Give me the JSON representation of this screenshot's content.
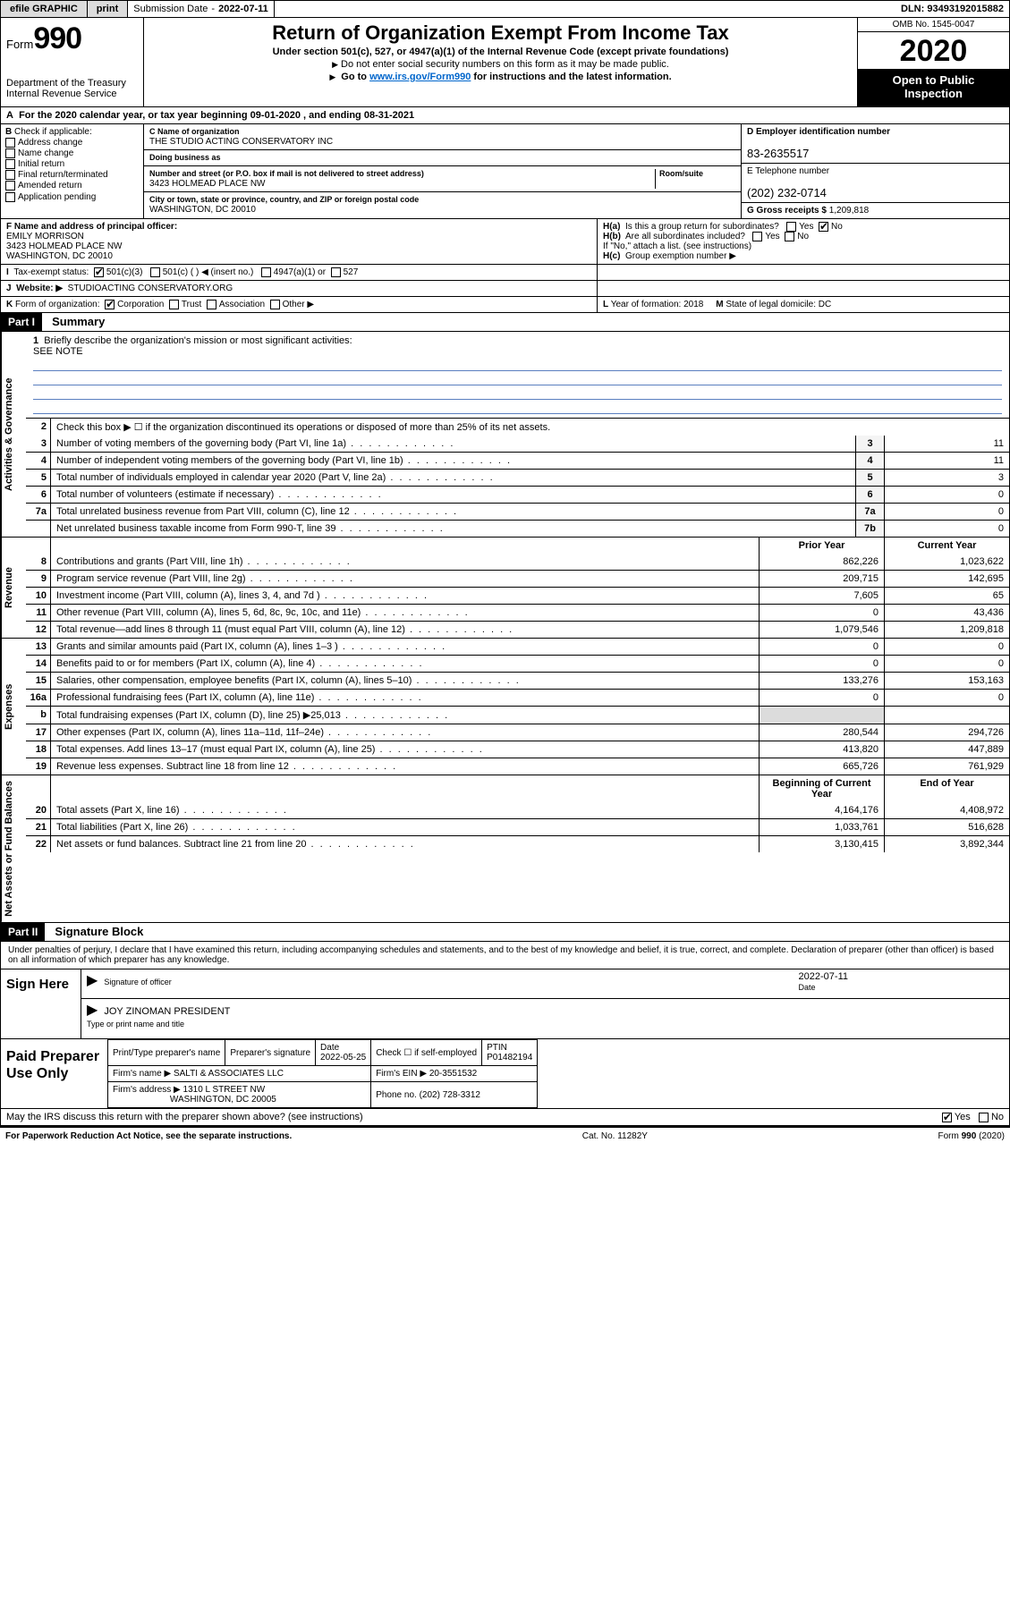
{
  "meta": {
    "omb": "OMB No. 1545-0047",
    "dln_label": "DLN:",
    "dln": "93493192015882",
    "year": "2020",
    "open1": "Open to Public",
    "open2": "Inspection"
  },
  "topbar": {
    "efile": "efile GRAPHIC",
    "print": "print",
    "subdate_label": "Submission Date",
    "subdate": "2022-07-11"
  },
  "header": {
    "form_word": "Form",
    "form_no": "990",
    "dept1": "Department of the Treasury",
    "dept2": "Internal Revenue Service",
    "title": "Return of Organization Exempt From Income Tax",
    "sub1": "Under section 501(c), 527, or 4947(a)(1) of the Internal Revenue Code (except private foundations)",
    "sub2": "Do not enter social security numbers on this form as it may be made public.",
    "sub3_pre": "Go to ",
    "sub3_link": "www.irs.gov/Form990",
    "sub3_post": " for instructions and the latest information."
  },
  "calrow": "For the 2020 calendar year, or tax year beginning 09-01-2020   , and ending 08-31-2021",
  "B": {
    "label": "Check if applicable:",
    "opts": [
      "Address change",
      "Name change",
      "Initial return",
      "Final return/terminated",
      "Amended return",
      "Application pending"
    ]
  },
  "C": {
    "name_lbl": "C Name of organization",
    "name": "THE STUDIO ACTING CONSERVATORY INC",
    "dba_lbl": "Doing business as",
    "addr_lbl": "Number and street (or P.O. box if mail is not delivered to street address)",
    "room_lbl": "Room/suite",
    "addr": "3423 HOLMEAD PLACE NW",
    "city_lbl": "City or town, state or province, country, and ZIP or foreign postal code",
    "city": "WASHINGTON, DC  20010"
  },
  "D": {
    "lbl": "D Employer identification number",
    "val": "83-2635517"
  },
  "E": {
    "lbl": "E Telephone number",
    "val": "(202) 232-0714"
  },
  "G": {
    "lbl": "G Gross receipts $",
    "val": "1,209,818"
  },
  "F": {
    "lbl": "F  Name and address of principal officer:",
    "name": "EMILY MORRISON",
    "addr1": "3423 HOLMEAD PLACE NW",
    "addr2": "WASHINGTON, DC  20010"
  },
  "H": {
    "a_lbl": "Is this a group return for subordinates?",
    "a_no_checked": true,
    "b_lbl": "Are all subordinates included?",
    "b_note": "If \"No,\" attach a list. (see instructions)",
    "c_lbl": "Group exemption number ▶"
  },
  "I": {
    "lbl": "Tax-exempt status:",
    "c501c3_checked": true,
    "opts": [
      "501(c)(3)",
      "501(c) (  ) ◀ (insert no.)",
      "4947(a)(1) or",
      "527"
    ]
  },
  "J": {
    "lbl": "Website: ▶",
    "val": "STUDIOACTING CONSERVATORY.ORG"
  },
  "K": {
    "lbl": "Form of organization:",
    "corp_checked": true,
    "opts": [
      "Corporation",
      "Trust",
      "Association",
      "Other ▶"
    ]
  },
  "L": {
    "lbl": "Year of formation:",
    "val": "2018"
  },
  "M": {
    "lbl": "State of legal domicile:",
    "val": "DC"
  },
  "part1": {
    "bar": "Part I",
    "title": "Summary",
    "line1_lbl": "Briefly describe the organization's mission or most significant activities:",
    "line1_val": "SEE NOTE",
    "line2": "Check this box ▶ ☐  if the organization discontinued its operations or disposed of more than 25% of its net assets.",
    "tabs": {
      "gov": "Activities & Governance",
      "rev": "Revenue",
      "exp": "Expenses",
      "net": "Net Assets or Fund Balances"
    },
    "cols": {
      "prior": "Prior Year",
      "curr": "Current Year",
      "beg": "Beginning of Current Year",
      "end": "End of Year"
    },
    "gov_rows": [
      {
        "n": "3",
        "t": "Number of voting members of the governing body (Part VI, line 1a)",
        "k": "3",
        "v": "11"
      },
      {
        "n": "4",
        "t": "Number of independent voting members of the governing body (Part VI, line 1b)",
        "k": "4",
        "v": "11"
      },
      {
        "n": "5",
        "t": "Total number of individuals employed in calendar year 2020 (Part V, line 2a)",
        "k": "5",
        "v": "3"
      },
      {
        "n": "6",
        "t": "Total number of volunteers (estimate if necessary)",
        "k": "6",
        "v": "0"
      },
      {
        "n": "7a",
        "t": "Total unrelated business revenue from Part VIII, column (C), line 12",
        "k": "7a",
        "v": "0"
      },
      {
        "n": "",
        "t": "Net unrelated business taxable income from Form 990-T, line 39",
        "k": "7b",
        "v": "0"
      }
    ],
    "rev_rows": [
      {
        "n": "8",
        "t": "Contributions and grants (Part VIII, line 1h)",
        "p": "862,226",
        "c": "1,023,622"
      },
      {
        "n": "9",
        "t": "Program service revenue (Part VIII, line 2g)",
        "p": "209,715",
        "c": "142,695"
      },
      {
        "n": "10",
        "t": "Investment income (Part VIII, column (A), lines 3, 4, and 7d )",
        "p": "7,605",
        "c": "65"
      },
      {
        "n": "11",
        "t": "Other revenue (Part VIII, column (A), lines 5, 6d, 8c, 9c, 10c, and 11e)",
        "p": "0",
        "c": "43,436"
      },
      {
        "n": "12",
        "t": "Total revenue—add lines 8 through 11 (must equal Part VIII, column (A), line 12)",
        "p": "1,079,546",
        "c": "1,209,818"
      }
    ],
    "exp_rows": [
      {
        "n": "13",
        "t": "Grants and similar amounts paid (Part IX, column (A), lines 1–3 )",
        "p": "0",
        "c": "0"
      },
      {
        "n": "14",
        "t": "Benefits paid to or for members (Part IX, column (A), line 4)",
        "p": "0",
        "c": "0"
      },
      {
        "n": "15",
        "t": "Salaries, other compensation, employee benefits (Part IX, column (A), lines 5–10)",
        "p": "133,276",
        "c": "153,163"
      },
      {
        "n": "16a",
        "t": "Professional fundraising fees (Part IX, column (A), line 11e)",
        "p": "0",
        "c": "0"
      },
      {
        "n": "b",
        "t": "Total fundraising expenses (Part IX, column (D), line 25) ▶25,013",
        "p": "",
        "c": ""
      },
      {
        "n": "17",
        "t": "Other expenses (Part IX, column (A), lines 11a–11d, 11f–24e)",
        "p": "280,544",
        "c": "294,726"
      },
      {
        "n": "18",
        "t": "Total expenses. Add lines 13–17 (must equal Part IX, column (A), line 25)",
        "p": "413,820",
        "c": "447,889"
      },
      {
        "n": "19",
        "t": "Revenue less expenses. Subtract line 18 from line 12",
        "p": "665,726",
        "c": "761,929"
      }
    ],
    "net_rows": [
      {
        "n": "20",
        "t": "Total assets (Part X, line 16)",
        "p": "4,164,176",
        "c": "4,408,972"
      },
      {
        "n": "21",
        "t": "Total liabilities (Part X, line 26)",
        "p": "1,033,761",
        "c": "516,628"
      },
      {
        "n": "22",
        "t": "Net assets or fund balances. Subtract line 21 from line 20",
        "p": "3,130,415",
        "c": "3,892,344"
      }
    ]
  },
  "part2": {
    "bar": "Part II",
    "title": "Signature Block",
    "decl": "Under penalties of perjury, I declare that I have examined this return, including accompanying schedules and statements, and to the best of my knowledge and belief, it is true, correct, and complete. Declaration of preparer (other than officer) is based on all information of which preparer has any knowledge.",
    "sign_lbl": "Sign Here",
    "sig_cap": "Signature of officer",
    "sig_date": "2022-07-11",
    "sig_date_cap": "Date",
    "officer": "JOY ZINOMAN  PRESIDENT",
    "officer_cap": "Type or print name and title",
    "prep_lbl": "Paid Preparer Use Only",
    "prep_headers": [
      "Print/Type preparer's name",
      "Preparer's signature",
      "Date",
      "Check ☐ if self-employed",
      "PTIN"
    ],
    "prep_date": "2022-05-25",
    "prep_ptin": "P01482194",
    "firm_name_lbl": "Firm's name    ▶",
    "firm_name": "SALTI & ASSOCIATES LLC",
    "firm_ein_lbl": "Firm's EIN ▶",
    "firm_ein": "20-3551532",
    "firm_addr_lbl": "Firm's address ▶",
    "firm_addr1": "1310 L STREET NW",
    "firm_addr2": "WASHINGTON, DC  20005",
    "firm_phone_lbl": "Phone no.",
    "firm_phone": "(202) 728-3312",
    "discuss": "May the IRS discuss this return with the preparer shown above? (see instructions)",
    "discuss_yes_checked": true
  },
  "footer": {
    "left": "For Paperwork Reduction Act Notice, see the separate instructions.",
    "mid": "Cat. No. 11282Y",
    "right_pre": "Form ",
    "right_b": "990",
    "right_post": " (2020)"
  },
  "colors": {
    "topbar_btn": "#dcdcdc",
    "rule_blue": "#5a7fc0",
    "link": "#0066cc"
  }
}
